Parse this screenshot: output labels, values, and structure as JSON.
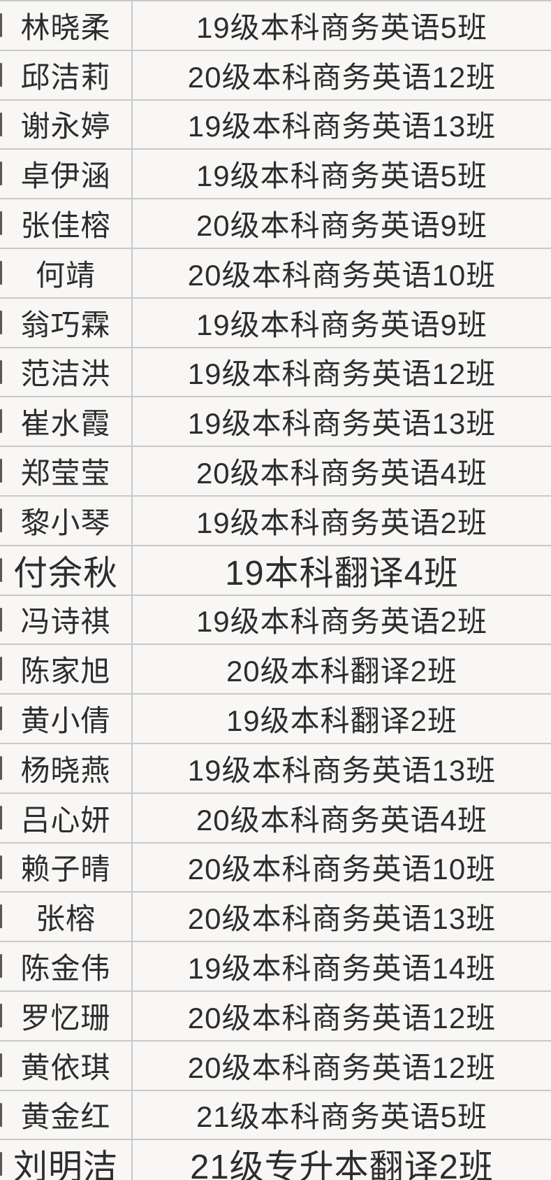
{
  "colors": {
    "background": "#f8f7f5",
    "grid_line": "#c9c9c9",
    "text": "#2d2d2d"
  },
  "table": {
    "columns": [
      "student_name",
      "class_name"
    ],
    "rows": [
      {
        "name": "林晓柔",
        "class": "19级本科商务英语5班",
        "large": false
      },
      {
        "name": "邱洁莉",
        "class": "20级本科商务英语12班",
        "large": false
      },
      {
        "name": "谢永婷",
        "class": "19级本科商务英语13班",
        "large": false
      },
      {
        "name": "卓伊涵",
        "class": "19级本科商务英语5班",
        "large": false
      },
      {
        "name": "张佳榕",
        "class": "20级本科商务英语9班",
        "large": false
      },
      {
        "name": "何靖",
        "class": "20级本科商务英语10班",
        "large": false
      },
      {
        "name": "翁巧霖",
        "class": "19级本科商务英语9班",
        "large": false
      },
      {
        "name": "范洁洪",
        "class": "19级本科商务英语12班",
        "large": false
      },
      {
        "name": "崔水霞",
        "class": "19级本科商务英语13班",
        "large": false
      },
      {
        "name": "郑莹莹",
        "class": "20级本科商务英语4班",
        "large": false
      },
      {
        "name": "黎小琴",
        "class": "19级本科商务英语2班",
        "large": false
      },
      {
        "name": "付余秋",
        "class": "19本科翻译4班",
        "large": true
      },
      {
        "name": "冯诗祺",
        "class": "19级本科商务英语2班",
        "large": false
      },
      {
        "name": "陈家旭",
        "class": "20级本科翻译2班",
        "large": false
      },
      {
        "name": "黄小倩",
        "class": "19级本科翻译2班",
        "large": false
      },
      {
        "name": "杨晓燕",
        "class": "19级本科商务英语13班",
        "large": false
      },
      {
        "name": "吕心妍",
        "class": "20级本科商务英语4班",
        "large": false
      },
      {
        "name": "赖子晴",
        "class": "20级本科商务英语10班",
        "large": false
      },
      {
        "name": "张榕",
        "class": "20级本科商务英语13班",
        "large": false
      },
      {
        "name": "陈金伟",
        "class": "19级本科商务英语14班",
        "large": false
      },
      {
        "name": "罗忆珊",
        "class": "20级本科商务英语12班",
        "large": false
      },
      {
        "name": "黄依琪",
        "class": "20级本科商务英语12班",
        "large": false
      },
      {
        "name": "黄金红",
        "class": "21级本科商务英语5班",
        "large": false
      },
      {
        "name": "刘明洁",
        "class": "21级专升本翻译2班",
        "large": true
      }
    ]
  }
}
